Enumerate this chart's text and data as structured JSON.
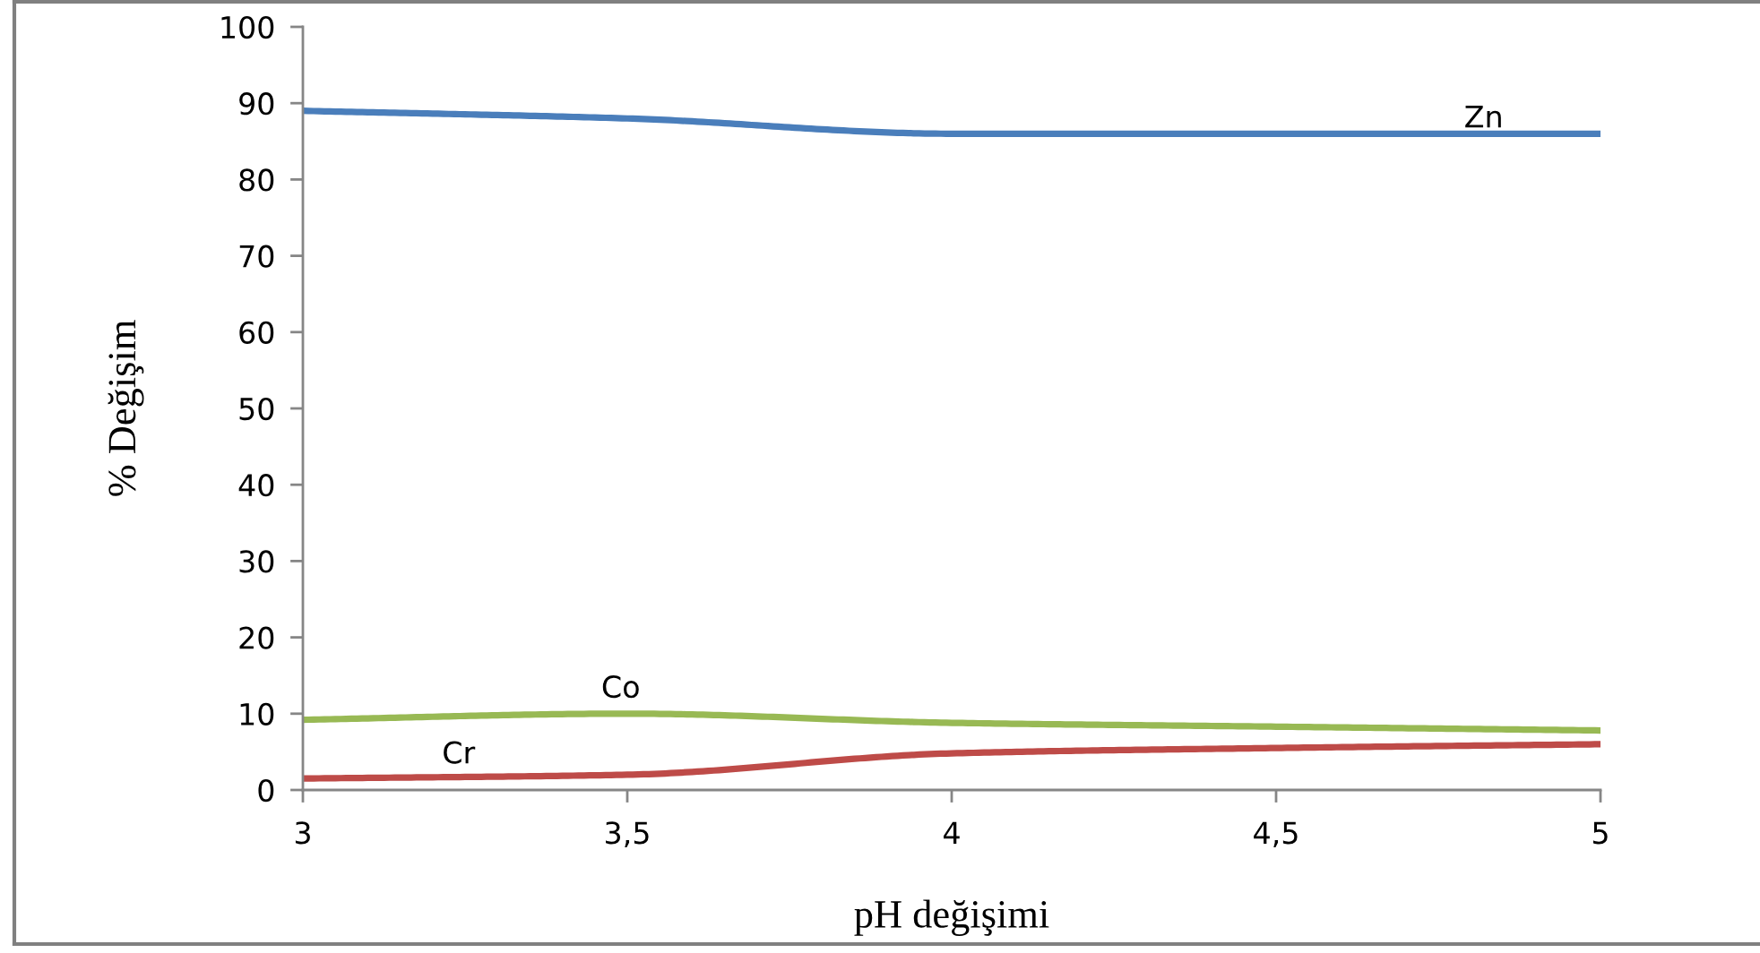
{
  "chart_data": {
    "type": "line",
    "xlabel": "pH değişimi",
    "ylabel": "% Değişim",
    "x": [
      3,
      3.5,
      4,
      4.5,
      5
    ],
    "xlim": [
      3,
      5
    ],
    "xticks": [
      3,
      {
        "value": 3.5,
        "label": "3,5"
      },
      4,
      {
        "value": 4.5,
        "label": "4,5"
      },
      5
    ],
    "ylim": [
      0,
      100
    ],
    "yticks": [
      0,
      10,
      20,
      30,
      40,
      50,
      60,
      70,
      80,
      90,
      100
    ],
    "grid": false,
    "legend": false,
    "marker": "none",
    "line_style": "solid",
    "series": [
      {
        "name": "Zn",
        "color": "#4a7ebb",
        "values": [
          89,
          88,
          86,
          86,
          86
        ]
      },
      {
        "name": "Co",
        "color": "#98b954",
        "values": [
          9.2,
          10,
          8.8,
          8.3,
          7.8
        ]
      },
      {
        "name": "Cr",
        "color": "#be4b48",
        "values": [
          1.5,
          2,
          4.8,
          5.5,
          6
        ]
      }
    ]
  }
}
